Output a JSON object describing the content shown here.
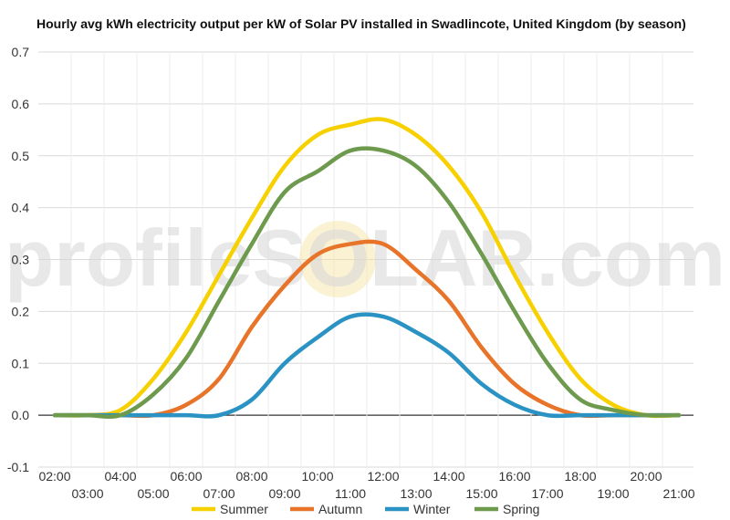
{
  "chart_data": {
    "type": "line",
    "title": "Hourly avg kWh electricity output per kW of Solar PV installed in Swadlincote, United Kingdom (by season)",
    "watermark": "profileSOLAR.com",
    "ylim": [
      -0.1,
      0.7
    ],
    "y_ticks": [
      "-0.1",
      "0.0",
      "0.1",
      "0.2",
      "0.3",
      "0.4",
      "0.5",
      "0.6",
      "0.7"
    ],
    "x": [
      "02:00",
      "03:00",
      "04:00",
      "05:00",
      "06:00",
      "07:00",
      "08:00",
      "09:00",
      "10:00",
      "11:00",
      "12:00",
      "13:00",
      "14:00",
      "15:00",
      "16:00",
      "17:00",
      "18:00",
      "19:00",
      "20:00",
      "21:00"
    ],
    "grid": true,
    "legend_position": "bottom",
    "series": [
      {
        "name": "Summer",
        "color": "#f7d000",
        "values": [
          0,
          0,
          0.01,
          0.07,
          0.16,
          0.27,
          0.38,
          0.48,
          0.54,
          0.56,
          0.57,
          0.54,
          0.48,
          0.39,
          0.27,
          0.16,
          0.07,
          0.02,
          0,
          0
        ]
      },
      {
        "name": "Autumn",
        "color": "#e8742a",
        "values": [
          0,
          0,
          0,
          0,
          0.02,
          0.07,
          0.17,
          0.25,
          0.31,
          0.33,
          0.33,
          0.28,
          0.22,
          0.13,
          0.06,
          0.02,
          0,
          0,
          0,
          0
        ]
      },
      {
        "name": "Winter",
        "color": "#2a93c4",
        "values": [
          0,
          0,
          0,
          0,
          0,
          0,
          0.03,
          0.1,
          0.15,
          0.19,
          0.19,
          0.16,
          0.12,
          0.06,
          0.02,
          0,
          0,
          0,
          0,
          0
        ]
      },
      {
        "name": "Spring",
        "color": "#6e9a4e",
        "values": [
          0,
          0,
          0,
          0.04,
          0.11,
          0.22,
          0.33,
          0.43,
          0.47,
          0.51,
          0.51,
          0.48,
          0.41,
          0.31,
          0.2,
          0.1,
          0.03,
          0.01,
          0,
          0
        ]
      }
    ]
  }
}
